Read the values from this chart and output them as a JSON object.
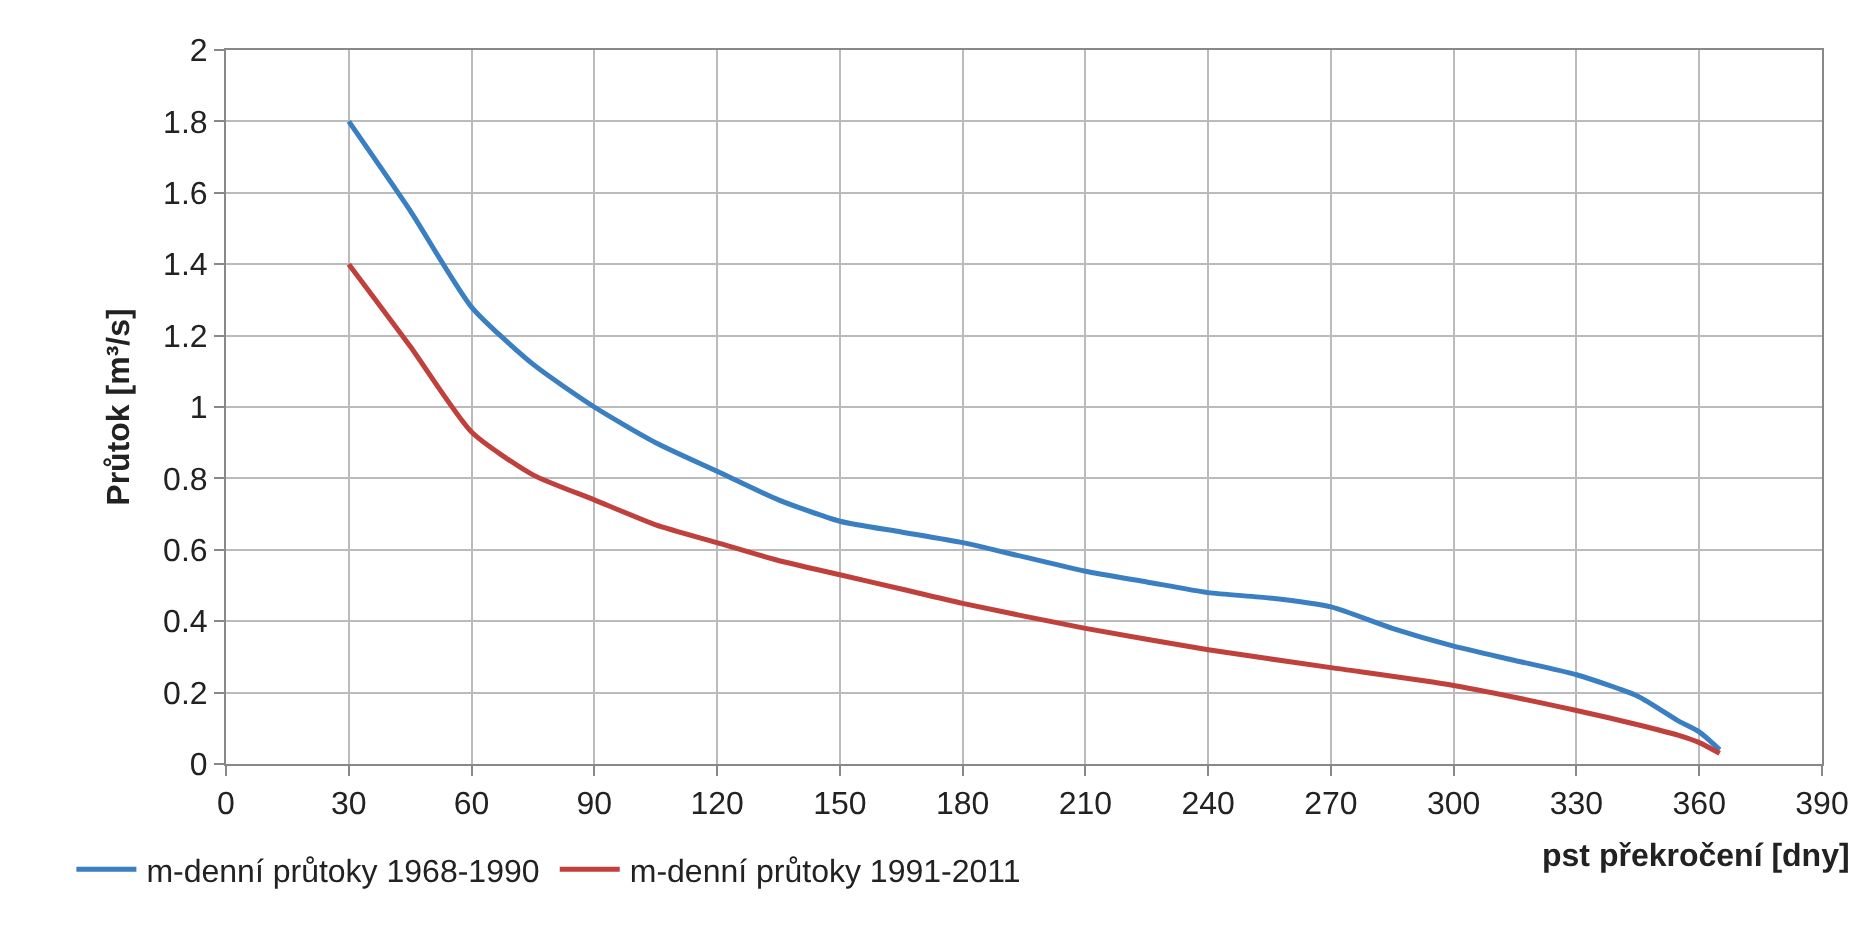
{
  "chart_data": {
    "type": "line",
    "xlabel": "pst překročení [dny]",
    "ylabel": "Průtok [m³/s]",
    "xlim": [
      0,
      390
    ],
    "xticks": [
      0,
      30,
      60,
      90,
      120,
      150,
      180,
      210,
      240,
      270,
      300,
      330,
      360,
      390
    ],
    "ylim": [
      0,
      2
    ],
    "yticks": [
      0,
      0.2,
      0.4,
      0.6,
      0.8,
      1,
      1.2,
      1.4,
      1.6,
      1.8,
      2
    ],
    "grid": true,
    "legend": "bottom left",
    "marker": "none",
    "line_style": "solid",
    "series": [
      {
        "name": "m-denní průtoky 1968-1990",
        "color": "#3a7fc1",
        "x": [
          30,
          45,
          60,
          75,
          90,
          105,
          120,
          135,
          150,
          165,
          180,
          195,
          210,
          225,
          240,
          255,
          270,
          285,
          300,
          315,
          330,
          345,
          355,
          360,
          365
        ],
        "values": [
          1.8,
          1.55,
          1.28,
          1.12,
          1.0,
          0.9,
          0.82,
          0.74,
          0.68,
          0.65,
          0.62,
          0.58,
          0.54,
          0.51,
          0.48,
          0.465,
          0.44,
          0.38,
          0.33,
          0.29,
          0.25,
          0.19,
          0.12,
          0.09,
          0.04
        ]
      },
      {
        "name": "m-denní průtoky 1991-2011",
        "color": "#c0403c",
        "x": [
          30,
          45,
          60,
          75,
          90,
          105,
          120,
          135,
          150,
          165,
          180,
          210,
          240,
          270,
          300,
          330,
          345,
          355,
          360,
          365
        ],
        "values": [
          1.4,
          1.17,
          0.93,
          0.81,
          0.74,
          0.67,
          0.62,
          0.57,
          0.53,
          0.49,
          0.45,
          0.38,
          0.32,
          0.27,
          0.22,
          0.15,
          0.11,
          0.08,
          0.06,
          0.03
        ]
      }
    ]
  }
}
